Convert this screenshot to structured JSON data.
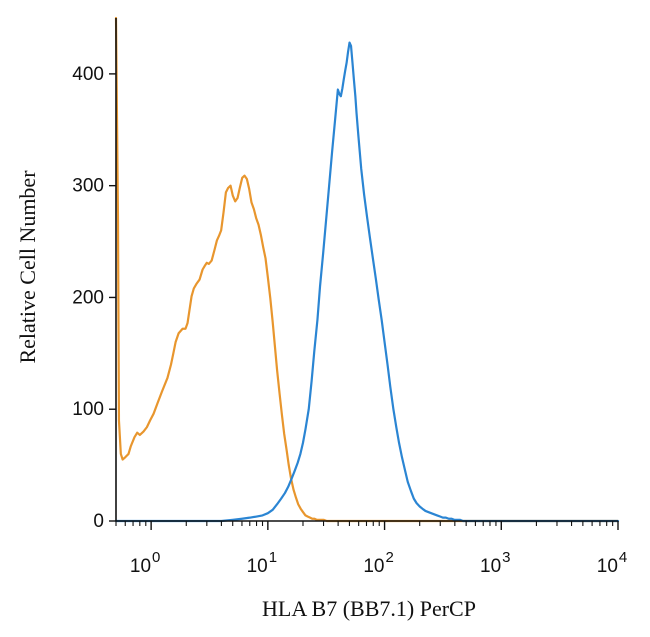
{
  "chart_data": {
    "type": "line",
    "title": "",
    "xlabel": "HLA B7 (BB7.1) PerCP",
    "ylabel": "Relative Cell Number",
    "x_scale": "log",
    "xlim": [
      0.5,
      10000
    ],
    "ylim": [
      0,
      450
    ],
    "x_ticks": [
      {
        "value": 1,
        "base": "10",
        "exp": "0"
      },
      {
        "value": 10,
        "base": "10",
        "exp": "1"
      },
      {
        "value": 100,
        "base": "10",
        "exp": "2"
      },
      {
        "value": 1000,
        "base": "10",
        "exp": "3"
      },
      {
        "value": 10000,
        "base": "10",
        "exp": "4"
      }
    ],
    "y_ticks": [
      {
        "value": 0,
        "label": "0"
      },
      {
        "value": 100,
        "label": "100"
      },
      {
        "value": 200,
        "label": "200"
      },
      {
        "value": 300,
        "label": "300"
      },
      {
        "value": 400,
        "label": "400"
      }
    ],
    "grid": false,
    "legend": "none",
    "series": [
      {
        "color": "#E8962E",
        "x": [
          0.5,
          0.52,
          0.53,
          0.55,
          0.57,
          0.6,
          0.64,
          0.67,
          0.72,
          0.76,
          0.8,
          0.86,
          0.92,
          0.98,
          1.05,
          1.14,
          1.24,
          1.38,
          1.48,
          1.55,
          1.62,
          1.72,
          1.86,
          1.97,
          2.05,
          2.14,
          2.22,
          2.32,
          2.44,
          2.6,
          2.76,
          2.87,
          3.0,
          3.12,
          3.3,
          3.5,
          3.66,
          3.81,
          3.98,
          4.17,
          4.37,
          4.57,
          4.79,
          5.01,
          5.25,
          5.5,
          5.75,
          6.03,
          6.31,
          6.61,
          6.92,
          7.24,
          7.59,
          7.94,
          8.32,
          8.71,
          9.12,
          9.55,
          10.0,
          10.5,
          11.0,
          11.5,
          12.0,
          12.6,
          13.2,
          13.8,
          14.5,
          15.1,
          15.8,
          16.6,
          17.4,
          18.2,
          19.1,
          20.0,
          21.0,
          21.9,
          23.0,
          24.0,
          25.1,
          26.3,
          27.5,
          28.8,
          30.2,
          32.0,
          34.0,
          38.0,
          45.0,
          60.0,
          100.0,
          200.0,
          400.0,
          1000.0,
          10000.0
        ],
        "y": [
          450,
          270,
          90,
          60,
          55,
          57,
          60,
          67,
          75,
          79,
          77,
          80,
          84,
          90,
          96,
          106,
          116,
          128,
          140,
          150,
          160,
          168,
          172,
          172,
          177,
          190,
          201,
          208,
          212,
          216,
          225,
          228,
          231,
          230,
          233,
          243,
          251,
          255,
          260,
          276,
          294,
          298,
          300,
          291,
          286,
          289,
          298,
          307,
          309,
          306,
          297,
          285,
          279,
          271,
          265,
          256,
          245,
          235,
          218,
          199,
          178,
          156,
          135,
          114,
          95,
          78,
          63,
          50,
          38,
          28,
          21,
          15,
          11,
          8,
          5,
          4,
          3,
          2,
          2,
          1,
          1,
          1,
          1,
          0,
          0,
          0,
          0,
          0,
          0,
          0,
          0,
          0,
          0
        ]
      },
      {
        "color": "#2B85D3",
        "x": [
          0.5,
          3.0,
          4.0,
          5.0,
          6.0,
          7.0,
          8.0,
          9.0,
          10.0,
          11.0,
          12.0,
          13.0,
          14.0,
          15.0,
          16.0,
          17.0,
          18.0,
          19.0,
          20.0,
          21.0,
          22.4,
          23.7,
          25.0,
          26.6,
          28.0,
          29.8,
          31.6,
          33.5,
          35.5,
          37.6,
          39.8,
          41.0,
          42.2,
          43.5,
          44.7,
          46.0,
          47.3,
          48.7,
          50.1,
          51.6,
          53.1,
          54.6,
          56.2,
          57.5,
          59.6,
          63.1,
          66.8,
          70.8,
          75.0,
          79.4,
          84.1,
          89.1,
          94.4,
          100.0,
          106.0,
          112.0,
          119.0,
          126.0,
          133.0,
          141.0,
          150.0,
          158.0,
          168.0,
          178.0,
          188.0,
          200.0,
          211.0,
          224.0,
          237.0,
          251.0,
          266.0,
          282.0,
          299.0,
          316.0,
          335.0,
          355.0,
          376.0,
          398.0,
          420.0,
          445.0,
          470.0,
          500.0,
          560.0,
          700.0,
          1000.0,
          2000.0,
          10000.0
        ],
        "y": [
          0,
          0,
          0,
          1,
          2,
          3,
          4,
          5,
          7,
          10,
          15,
          20,
          25,
          31,
          38,
          45,
          52,
          60,
          70,
          82,
          100,
          125,
          152,
          180,
          210,
          240,
          270,
          300,
          330,
          358,
          386,
          382,
          380,
          387,
          395,
          403,
          410,
          420,
          428,
          425,
          410,
          395,
          380,
          365,
          345,
          315,
          292,
          272,
          253,
          235,
          217,
          198,
          180,
          160,
          140,
          120,
          100,
          84,
          70,
          57,
          45,
          35,
          27,
          20,
          16,
          13,
          11,
          9,
          8,
          7,
          6,
          5,
          4,
          3,
          3,
          2,
          2,
          1,
          1,
          1,
          0,
          0,
          0,
          0,
          0,
          0,
          0
        ]
      }
    ]
  }
}
